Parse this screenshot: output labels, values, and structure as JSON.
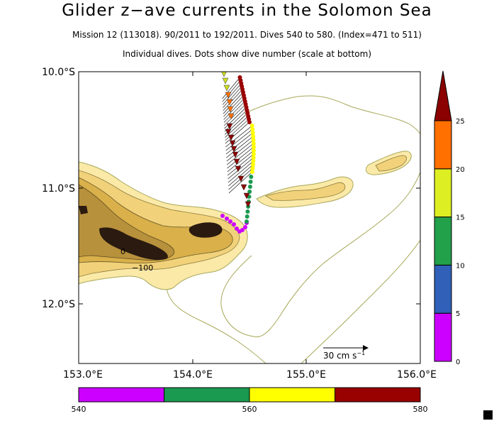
{
  "title": "Glider z−ave currents in the Solomon Sea",
  "subtitle1": "Mission 12 (113018). 90/2011 to 192/2011. Dives 540 to 580. (Index=471 to 511)",
  "subtitle2": "Individual dives. Dots show dive number (scale at bottom)",
  "map": {
    "lon_range": [
      153.0,
      156.0
    ],
    "lat_range": [
      -12.5,
      -10.0
    ],
    "lon_ticks": [
      "153.0°E",
      "154.0°E",
      "155.0°E",
      "156.0°E"
    ],
    "lat_ticks": [
      "10.0°S",
      "11.0°S",
      "12.0°S"
    ],
    "contour_labels": [
      "0",
      "−100"
    ],
    "land_color": "#2a1a10",
    "shelf_colors": [
      "#b8913c",
      "#d9b04a",
      "#f1d27a",
      "#fbe9a8"
    ],
    "isobath_color": "#a8a85a"
  },
  "scale_arrow": {
    "label": "30 cm s",
    "superscript": "−1"
  },
  "current_colorbar": {
    "tick_labels": [
      "0",
      "5",
      "10",
      "15",
      "20",
      "25"
    ],
    "colors": [
      "#cc00ff",
      "#3060b8",
      "#22a04a",
      "#ddee22",
      "#ff7000",
      "#8b0000"
    ]
  },
  "dive_colorbar": {
    "tick_labels": [
      "540",
      "560",
      "580"
    ],
    "colors": [
      "#cc00ff",
      "#1a9950",
      "#ffff00",
      "#990000"
    ]
  }
}
